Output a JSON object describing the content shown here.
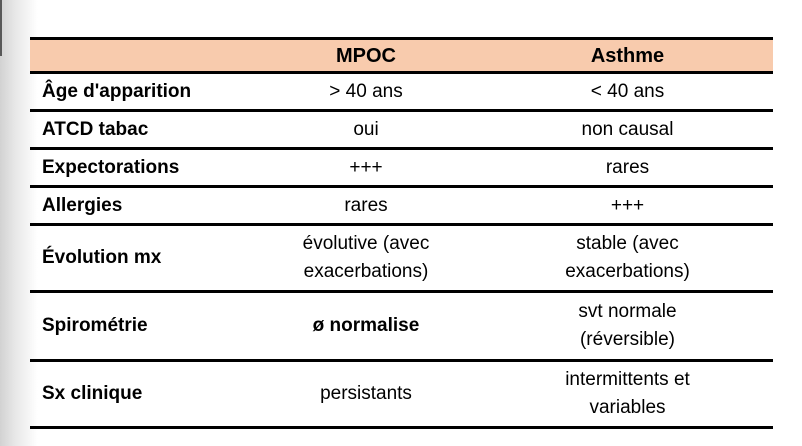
{
  "page": {
    "background": "#ffffff",
    "left_edge_shadow": "#d2d2d2"
  },
  "table": {
    "colors": {
      "header_bg": "#F8CBAD",
      "border": "#000000",
      "text": "#000000"
    },
    "header": {
      "col1": "",
      "col2": "MPOC",
      "col3": "Asthme"
    },
    "rows": [
      {
        "label": "Âge d'apparition",
        "mpoc": "> 40 ans",
        "asthme": "< 40 ans"
      },
      {
        "label": "ATCD tabac",
        "mpoc": "oui",
        "asthme": "non causal"
      },
      {
        "label": "Expectorations",
        "mpoc": "+++",
        "asthme": "rares"
      },
      {
        "label": "Allergies",
        "mpoc": "rares",
        "asthme": "+++"
      },
      {
        "label": "Évolution mx",
        "mpoc": "évolutive (avec\nexacerbations)",
        "asthme": "stable (avec\nexacerbations)"
      },
      {
        "label": "Spirométrie",
        "mpoc": "ø normalise",
        "asthme": "svt normale\n(réversible)"
      },
      {
        "label": "Sx clinique",
        "mpoc": "persistants",
        "asthme": "intermittents et\nvariables"
      }
    ]
  }
}
